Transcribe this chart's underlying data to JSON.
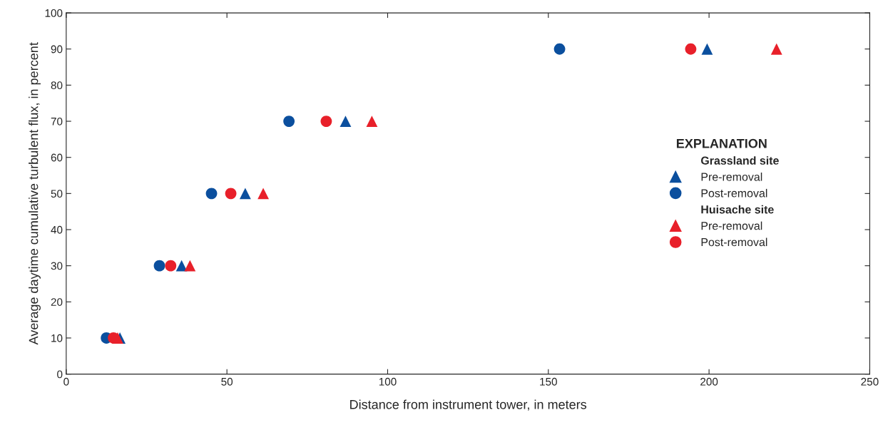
{
  "chart_data": {
    "type": "scatter",
    "xlabel": "Distance from instrument tower, in meters",
    "ylabel": "Average daytime cumulative turbulent flux, in percent",
    "legend_title": "EXPLANATION",
    "annotations": [
      "Grassland site",
      "Huisache site"
    ],
    "xlim": [
      0,
      250
    ],
    "xticks": [
      0,
      50,
      100,
      150,
      200,
      250
    ],
    "ylim": [
      0,
      100
    ],
    "yticks": [
      0,
      10,
      20,
      30,
      40,
      50,
      60,
      70,
      80,
      90,
      100
    ],
    "grid": false,
    "legend": "right",
    "series": [
      {
        "name": "Pre-removal",
        "color": "#0b4f9e",
        "marker": "triangle",
        "x": [
          16.7,
          35.9,
          55.7,
          86.9,
          199.4
        ],
        "values": [
          10,
          30,
          50,
          70,
          90
        ]
      },
      {
        "name": "Post-removal",
        "color": "#0b4f9e",
        "marker": "circle",
        "x": [
          12.5,
          29.0,
          45.2,
          69.3,
          153.5
        ],
        "values": [
          10,
          30,
          50,
          70,
          90
        ]
      },
      {
        "name": "Pre-removal",
        "color": "#e8202a",
        "marker": "triangle",
        "x": [
          16.0,
          38.5,
          61.3,
          95.1,
          221.0
        ],
        "values": [
          10,
          30,
          50,
          70,
          90
        ]
      },
      {
        "name": "Post-removal",
        "color": "#e8202a",
        "marker": "circle",
        "x": [
          14.7,
          32.5,
          51.2,
          80.9,
          194.3
        ],
        "values": [
          10,
          30,
          50,
          70,
          90
        ]
      }
    ]
  }
}
